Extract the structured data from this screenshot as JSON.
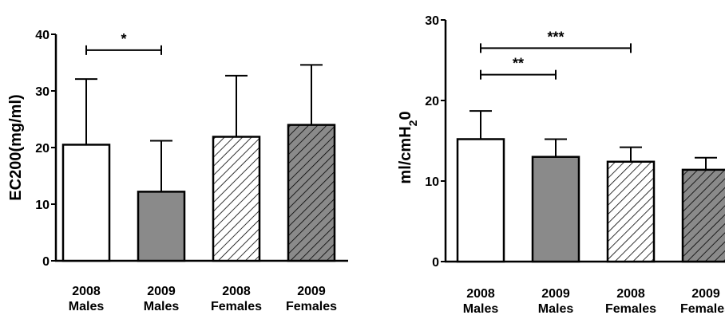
{
  "chart_data": [
    {
      "type": "bar",
      "ylabel": "EC200(mg/ml)",
      "ylim": [
        0,
        40
      ],
      "yticks": [
        "0",
        "10",
        "20",
        "30",
        "40"
      ],
      "categories": [
        {
          "line1": "2008",
          "line2": "Males"
        },
        {
          "line1": "2009",
          "line2": "Males"
        },
        {
          "line1": "2008",
          "line2": "Females"
        },
        {
          "line1": "2009",
          "line2": "Females"
        }
      ],
      "values": [
        20.5,
        12.2,
        21.9,
        24.0
      ],
      "errors": [
        11.6,
        9.0,
        10.8,
        10.6
      ],
      "fills": [
        "white",
        "gray",
        "hatch-white",
        "hatch-gray"
      ],
      "significance": [
        {
          "from": 0,
          "to": 1,
          "label": "*",
          "y": 37.2
        }
      ],
      "grid": false
    },
    {
      "type": "bar",
      "ylabel": "ml/cmH",
      "ylabel_sub": "2",
      "ylabel_tail": "0",
      "ylim": [
        0,
        30
      ],
      "yticks": [
        "0",
        "10",
        "20",
        "30"
      ],
      "categories": [
        {
          "line1": "2008",
          "line2": "Males"
        },
        {
          "line1": "2009",
          "line2": "Males"
        },
        {
          "line1": "2008",
          "line2": "Females"
        },
        {
          "line1": "2009",
          "line2": "Females"
        }
      ],
      "values": [
        15.2,
        13.0,
        12.4,
        11.4
      ],
      "errors": [
        3.5,
        2.2,
        1.8,
        1.5
      ],
      "fills": [
        "white",
        "gray",
        "hatch-white",
        "hatch-gray"
      ],
      "significance": [
        {
          "from": 0,
          "to": 2,
          "label": "***",
          "y": 26.5
        },
        {
          "from": 0,
          "to": 1,
          "label": "**",
          "y": 23.2
        }
      ],
      "grid": false
    }
  ]
}
